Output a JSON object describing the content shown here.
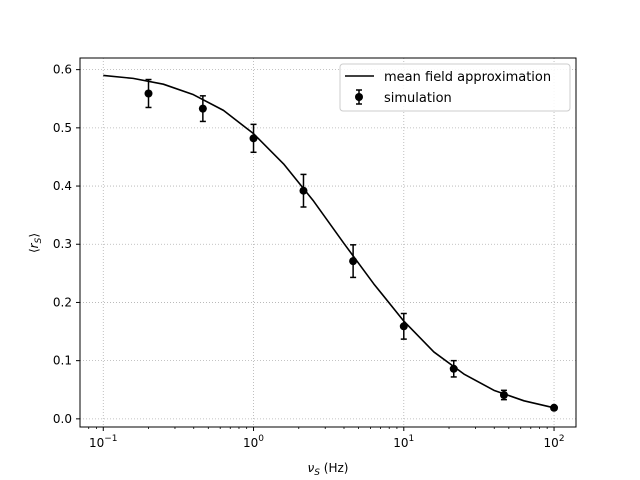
{
  "chart_data": {
    "type": "scatter",
    "x_scale": "log",
    "xlim": [
      0.07,
      140
    ],
    "ylim": [
      -0.014,
      0.62
    ],
    "xlabel": {
      "symbol": "ν",
      "sub": "S",
      "unit": " (Hz)"
    },
    "ylabel": {
      "open": "⟨",
      "symbol": "r",
      "sub": "S",
      "close": "⟩"
    },
    "x_ticks": [
      {
        "value": 0.1,
        "base": "10",
        "exp": "−1"
      },
      {
        "value": 1,
        "base": "10",
        "exp": "0"
      },
      {
        "value": 10,
        "base": "10",
        "exp": "1"
      },
      {
        "value": 100,
        "base": "10",
        "exp": "2"
      }
    ],
    "y_ticks": [
      {
        "value": 0.0,
        "label": "0.0"
      },
      {
        "value": 0.1,
        "label": "0.1"
      },
      {
        "value": 0.2,
        "label": "0.2"
      },
      {
        "value": 0.3,
        "label": "0.3"
      },
      {
        "value": 0.4,
        "label": "0.4"
      },
      {
        "value": 0.5,
        "label": "0.5"
      },
      {
        "value": 0.6,
        "label": "0.6"
      }
    ],
    "grid": true,
    "legend_position": "top-right",
    "series": [
      {
        "name": "mean field approximation",
        "kind": "line",
        "color": "#000000",
        "x": [
          0.1,
          0.158,
          0.251,
          0.398,
          0.631,
          1.0,
          1.585,
          2.512,
          3.981,
          6.31,
          10.0,
          15.85,
          25.12,
          39.81,
          63.1,
          100
        ],
        "y": [
          0.59,
          0.585,
          0.575,
          0.557,
          0.53,
          0.49,
          0.438,
          0.374,
          0.302,
          0.232,
          0.168,
          0.115,
          0.077,
          0.049,
          0.031,
          0.019
        ]
      },
      {
        "name": "simulation",
        "kind": "errorbar",
        "color": "#000000",
        "x": [
          0.2,
          0.46,
          1.0,
          2.15,
          4.6,
          10.0,
          21.5,
          46.4,
          100
        ],
        "y": [
          0.559,
          0.533,
          0.482,
          0.392,
          0.271,
          0.159,
          0.086,
          0.041,
          0.019
        ],
        "yerr": [
          0.024,
          0.022,
          0.024,
          0.028,
          0.028,
          0.022,
          0.014,
          0.008,
          0.003
        ]
      }
    ]
  }
}
